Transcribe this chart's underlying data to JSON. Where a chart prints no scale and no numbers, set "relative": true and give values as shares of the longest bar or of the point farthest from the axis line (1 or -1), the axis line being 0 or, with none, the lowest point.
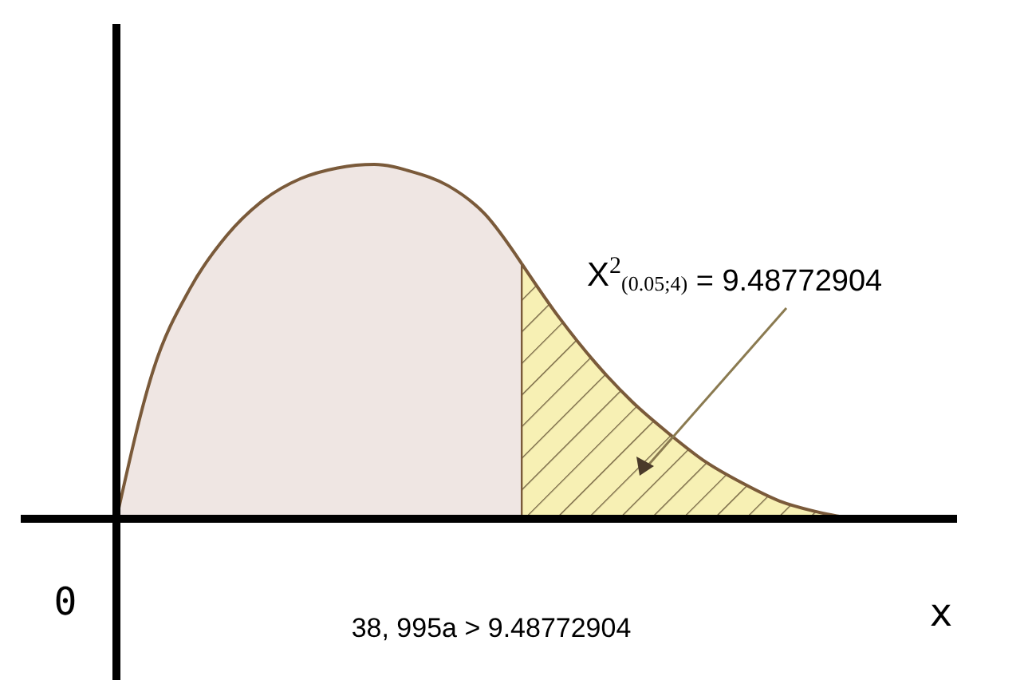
{
  "chart_data": {
    "type": "area",
    "relative": true,
    "xlabel": "x",
    "categories": [
      null,
      null,
      null,
      null,
      null,
      null,
      null,
      null,
      null,
      null,
      null,
      null,
      null,
      null,
      null,
      null,
      null,
      null,
      null,
      null,
      null
    ],
    "series": [
      {
        "color": "#efe6e3",
        "values": [
          0,
          0.42,
          0.65,
          0.8,
          0.9,
          0.96,
          0.99,
          1,
          0.98,
          0.94,
          0.86,
          0.72,
          null,
          null,
          null,
          null,
          null,
          null,
          null,
          null,
          null
        ]
      },
      {
        "color": "#f7f0b4",
        "values": [
          null,
          null,
          null,
          null,
          null,
          null,
          null,
          null,
          null,
          null,
          null,
          0.72,
          0.57,
          0.44,
          0.33,
          0.24,
          0.16,
          0.1,
          0.05,
          0.02,
          0
        ]
      }
    ],
    "annotations": [
      "0",
      "X$^{2}$$_{(0.05;4)}$ = 9.48772904",
      "38, 995a > 9.48772904"
    ]
  }
}
